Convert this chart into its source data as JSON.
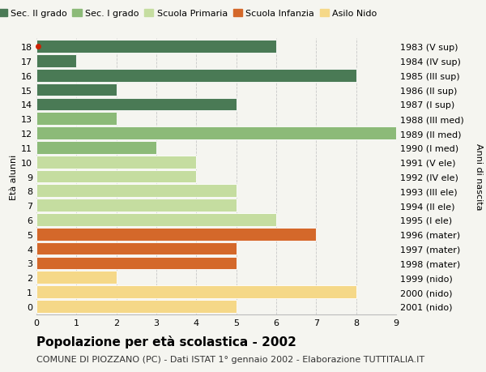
{
  "ages": [
    18,
    17,
    16,
    15,
    14,
    13,
    12,
    11,
    10,
    9,
    8,
    7,
    6,
    5,
    4,
    3,
    2,
    1,
    0
  ],
  "years": [
    "1983 (V sup)",
    "1984 (IV sup)",
    "1985 (III sup)",
    "1986 (II sup)",
    "1987 (I sup)",
    "1988 (III med)",
    "1989 (II med)",
    "1990 (I med)",
    "1991 (V ele)",
    "1992 (IV ele)",
    "1993 (III ele)",
    "1994 (II ele)",
    "1995 (I ele)",
    "1996 (mater)",
    "1997 (mater)",
    "1998 (mater)",
    "1999 (nido)",
    "2000 (nido)",
    "2001 (nido)"
  ],
  "values": [
    6,
    1,
    8,
    2,
    5,
    2,
    9,
    3,
    4,
    4,
    5,
    5,
    6,
    7,
    5,
    5,
    2,
    8,
    5
  ],
  "categories": [
    "Sec. II grado",
    "Sec. II grado",
    "Sec. II grado",
    "Sec. II grado",
    "Sec. II grado",
    "Sec. I grado",
    "Sec. I grado",
    "Sec. I grado",
    "Scuola Primaria",
    "Scuola Primaria",
    "Scuola Primaria",
    "Scuola Primaria",
    "Scuola Primaria",
    "Scuola Infanzia",
    "Scuola Infanzia",
    "Scuola Infanzia",
    "Asilo Nido",
    "Asilo Nido",
    "Asilo Nido"
  ],
  "colors": {
    "Sec. II grado": "#4a7a55",
    "Sec. I grado": "#8cba78",
    "Scuola Primaria": "#c5dda0",
    "Scuola Infanzia": "#d4682a",
    "Asilo Nido": "#f5d888"
  },
  "legend_order": [
    "Sec. II grado",
    "Sec. I grado",
    "Scuola Primaria",
    "Scuola Infanzia",
    "Asilo Nido"
  ],
  "title": "Popolazione per età scolastica - 2002",
  "subtitle": "COMUNE DI PIOZZANO (PC) - Dati ISTAT 1° gennaio 2002 - Elaborazione TUTTITALIA.IT",
  "ylabel_left": "Età alunni",
  "ylabel_right": "Anni di nascita",
  "xlim": [
    0,
    9
  ],
  "xticks": [
    0,
    1,
    2,
    3,
    4,
    5,
    6,
    7,
    8,
    9
  ],
  "bg_color": "#f5f5f0",
  "bar_height": 0.88,
  "red_dot_age": 18,
  "title_fontsize": 11,
  "subtitle_fontsize": 8,
  "tick_fontsize": 8,
  "label_fontsize": 8,
  "legend_fontsize": 8
}
